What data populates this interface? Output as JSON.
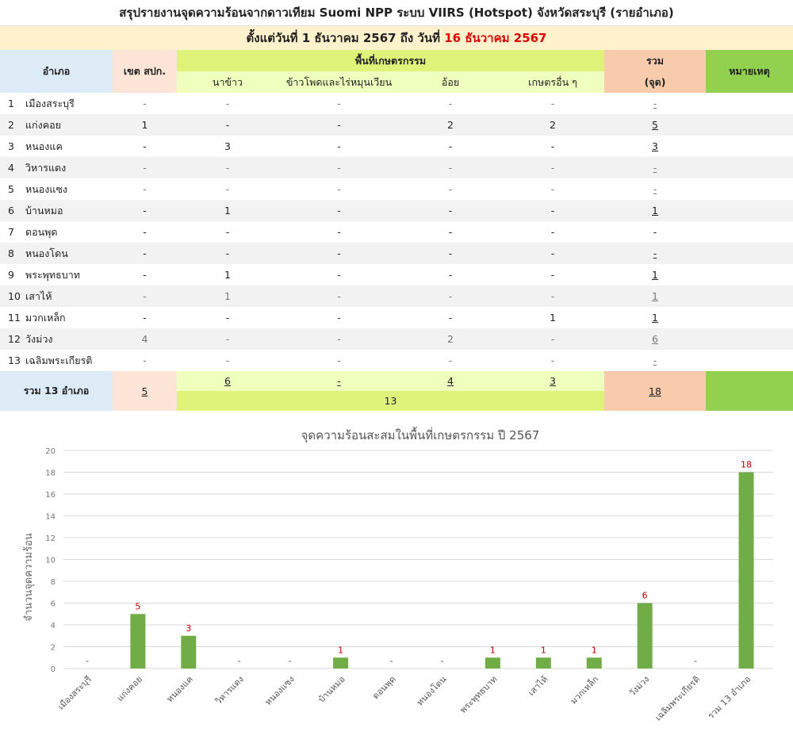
{
  "header": {
    "title": "สรุปรายงานจุดความร้อนจากดาวเทียม Suomi NPP ระบบ VIIRS (Hotspot) จังหวัดสระบุรี (รายอำเภอ)",
    "period_prefix": "ตั้งแต่วันที่ 1 ธันวาคม 2567 ถึง วันที่",
    "period_end": "16 ธันวาคม 2567"
  },
  "table": {
    "col_district": "อำเภอ",
    "col_zone": "เขต สปก.",
    "col_agri": "พื้นที่เกษตรกรรม",
    "col_rice": "นาข้าว",
    "col_corn": "ข้าวโพดและไร่หมุนเวียน",
    "col_cane": "อ้อย",
    "col_other": "เกษตรอื่น ๆ",
    "col_total": "รวม",
    "col_total_unit": "(จุด)",
    "col_note": "หมายเหตุ",
    "rows": [
      {
        "no": "1",
        "name": "เมืองสระบุรี",
        "zone": "-",
        "rice": "-",
        "corn": "-",
        "cane": "-",
        "other": "-",
        "total": "-",
        "dim": true
      },
      {
        "no": "2",
        "name": "แก่งคอย",
        "zone": "1",
        "rice": "-",
        "corn": "-",
        "cane": "2",
        "other": "2",
        "total": "5",
        "dim": false
      },
      {
        "no": "3",
        "name": "หนองแค",
        "zone": "-",
        "rice": "3",
        "corn": "-",
        "cane": "-",
        "other": "-",
        "total": "3",
        "dim": false
      },
      {
        "no": "4",
        "name": "วิหารแดง",
        "zone": "-",
        "rice": "-",
        "corn": "-",
        "cane": "-",
        "other": "-",
        "total": "-",
        "dim": true
      },
      {
        "no": "5",
        "name": "หนองแซง",
        "zone": "-",
        "rice": "-",
        "corn": "-",
        "cane": "-",
        "other": "-",
        "total": "-",
        "dim": true
      },
      {
        "no": "6",
        "name": "บ้านหมอ",
        "zone": "-",
        "rice": "1",
        "corn": "-",
        "cane": "-",
        "other": "-",
        "total": "1",
        "dim": false
      },
      {
        "no": "7",
        "name": "ดอนพุด",
        "zone": "-",
        "rice": "-",
        "corn": "-",
        "cane": "-",
        "other": "-",
        "total": "-",
        "dim": false
      },
      {
        "no": "8",
        "name": "หนองโดน",
        "zone": "-",
        "rice": "-",
        "corn": "-",
        "cane": "-",
        "other": "-",
        "total": "-",
        "dim": false
      },
      {
        "no": "9",
        "name": "พระพุทธบาท",
        "zone": "-",
        "rice": "1",
        "corn": "-",
        "cane": "-",
        "other": "-",
        "total": "1",
        "dim": false
      },
      {
        "no": "10",
        "name": "เสาไห้",
        "zone": "-",
        "rice": "1",
        "corn": "-",
        "cane": "-",
        "other": "-",
        "total": "1",
        "dim": true
      },
      {
        "no": "11",
        "name": "มวกเหล็ก",
        "zone": "-",
        "rice": "-",
        "corn": "-",
        "cane": "-",
        "other": "1",
        "total": "1",
        "dim": false
      },
      {
        "no": "12",
        "name": "วังม่วง",
        "zone": "4",
        "rice": "-",
        "corn": "-",
        "cane": "2",
        "other": "-",
        "total": "6",
        "dim": true
      },
      {
        "no": "13",
        "name": "เฉลิมพระเกียรติ",
        "zone": "-",
        "rice": "-",
        "corn": "-",
        "cane": "-",
        "other": "-",
        "total": "-",
        "dim": true
      }
    ],
    "summary": {
      "name": "รวม 13 อำเภอ",
      "zone": "5",
      "rice": "6",
      "corn": "-",
      "cane": "4",
      "other": "3",
      "agri_total": "13",
      "total": "18"
    }
  },
  "colors": {
    "bar": "#70ad47",
    "label": "#c00000",
    "grid": "#d9d9d9"
  },
  "chart_data": {
    "type": "bar",
    "title": "จุดความร้อนสะสมในพื้นที่เกษตรกรรม ปี 2567",
    "xlabel": "",
    "ylabel": "จำนวนจุดความร้อน",
    "ylim": [
      0,
      20
    ],
    "yticks": [
      0,
      2,
      4,
      6,
      8,
      10,
      12,
      14,
      16,
      18,
      20
    ],
    "grid": true,
    "categories": [
      "เมืองสระบุรี",
      "แก่งคอย",
      "หนองแค",
      "วิหารแดง",
      "หนองแซง",
      "บ้านหมอ",
      "ดอนพุด",
      "หนองโดน",
      "พระพุทธบาท",
      "เสาไห้",
      "มวกเหล็ก",
      "วังม่วง",
      "เฉลิมพระเกียรติ",
      "รวม 13 อำเภอ"
    ],
    "values": [
      0,
      5,
      3,
      0,
      0,
      1,
      0,
      0,
      1,
      1,
      1,
      6,
      0,
      18
    ],
    "data_labels": [
      "-",
      "5",
      "3",
      "-",
      "-",
      "1",
      "-",
      "-",
      "1",
      "1",
      "1",
      "6",
      "-",
      "18"
    ]
  }
}
